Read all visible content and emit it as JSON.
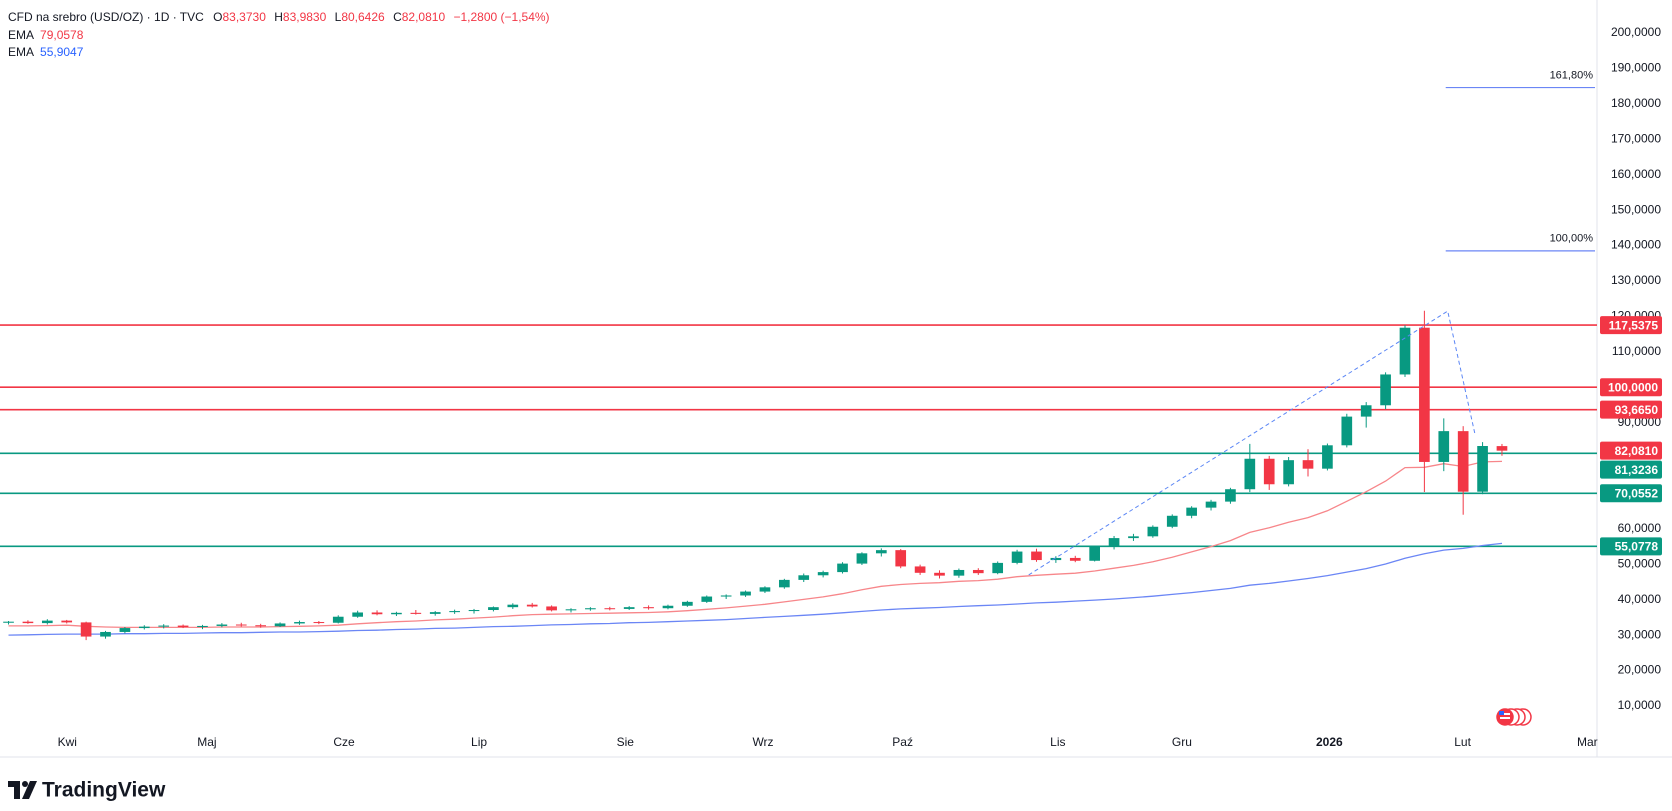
{
  "chart_data": {
    "type": "candlestick",
    "header": {
      "symbol": "CFD na srebro (USD/OZ) · 1D · TVC",
      "ohlc": [
        [
          "O",
          "83,3730"
        ],
        [
          "H",
          "83,9830"
        ],
        [
          "L",
          "80,6426"
        ],
        [
          "C",
          "82,0810"
        ]
      ],
      "change": "−1,2800 (−1,54%)"
    },
    "up_color": "#089981",
    "down_color": "#f23645",
    "xlim": [
      -0.44,
      81.9
    ],
    "ylim": [
      3.22,
      209.32
    ],
    "xticks": [
      {
        "value": 3.03,
        "label": "Kwi"
      },
      {
        "value": 10.23,
        "label": "Maj"
      },
      {
        "value": 17.3,
        "label": "Cze"
      },
      {
        "value": 24.26,
        "label": "Lip"
      },
      {
        "value": 31.8,
        "label": "Sie"
      },
      {
        "value": 38.9,
        "label": "Wrz"
      },
      {
        "value": 46.1,
        "label": "Paź"
      },
      {
        "value": 54.1,
        "label": "Lis"
      },
      {
        "value": 60.5,
        "label": "Gru"
      },
      {
        "value": 68.1,
        "label": "2026"
      },
      {
        "value": 74.97,
        "label": "Lut"
      },
      {
        "value": 81.4,
        "label": "Mar"
      }
    ],
    "yticks": [
      {
        "value": 10,
        "label": "10,0000"
      },
      {
        "value": 20,
        "label": "20,0000"
      },
      {
        "value": 30,
        "label": "30,0000"
      },
      {
        "value": 40,
        "label": "40,0000"
      },
      {
        "value": 50,
        "label": "50,0000"
      },
      {
        "value": 60,
        "label": "60,0000"
      },
      {
        "value": 90,
        "label": "90,0000"
      },
      {
        "value": 110,
        "label": "110,0000"
      },
      {
        "value": 120,
        "label": "120,0000"
      },
      {
        "value": 130,
        "label": "130,0000"
      },
      {
        "value": 140,
        "label": "140,0000"
      },
      {
        "value": 150,
        "label": "150,0000"
      },
      {
        "value": 160,
        "label": "160,0000"
      },
      {
        "value": 170,
        "label": "170,0000"
      },
      {
        "value": 180,
        "label": "180,0000"
      },
      {
        "value": 190,
        "label": "190,0000"
      },
      {
        "value": 200,
        "label": "200,0000"
      }
    ],
    "open": [
      33.5,
      33.8,
      33.4,
      34.1,
      33.6,
      29.6,
      30.9,
      32.0,
      32.4,
      32.7,
      32.3,
      32.6,
      33.0,
      32.8,
      32.5,
      33.3,
      33.7,
      33.5,
      35.2,
      36.4,
      35.9,
      36.3,
      36.0,
      36.5,
      36.8,
      37.1,
      37.9,
      38.6,
      38.1,
      37.0,
      37.3,
      37.6,
      37.4,
      37.9,
      37.6,
      38.3,
      39.4,
      40.9,
      41.2,
      42.3,
      43.5,
      45.6,
      46.9,
      47.8,
      50.2,
      53.1,
      54.0,
      49.4,
      47.6,
      46.8,
      48.4,
      47.5,
      50.4,
      53.6,
      51.2,
      51.8,
      51.0,
      54.9,
      57.4,
      57.9,
      60.6,
      63.7,
      66.0,
      67.7,
      71.2,
      79.8,
      72.6,
      79.4,
      77.0,
      83.6,
      91.7,
      94.9,
      103.6,
      116.8,
      78.9,
      87.6,
      70.5,
      83.373
    ],
    "high": [
      34.0,
      34.2,
      34.5,
      34.3,
      33.8,
      31.2,
      32.3,
      32.8,
      33.1,
      33.0,
      32.9,
      33.4,
      33.5,
      33.2,
      33.6,
      34.1,
      34.0,
      35.6,
      36.9,
      37.0,
      36.6,
      37.1,
      36.8,
      37.2,
      37.4,
      38.1,
      39.0,
      39.1,
      38.4,
      37.6,
      37.9,
      38.0,
      38.2,
      38.4,
      38.6,
      39.7,
      41.2,
      41.5,
      42.6,
      43.8,
      45.9,
      47.4,
      48.2,
      50.6,
      53.4,
      54.5,
      54.3,
      49.9,
      48.3,
      48.8,
      48.9,
      50.8,
      54.1,
      54.4,
      52.3,
      52.4,
      55.3,
      58.0,
      58.6,
      61.0,
      64.1,
      66.4,
      68.2,
      71.6,
      84.0,
      80.6,
      80.3,
      82.5,
      84.1,
      92.5,
      95.8,
      104.2,
      117.5,
      121.6,
      91.2,
      89.0,
      84.5,
      83.983
    ],
    "low": [
      33.0,
      33.2,
      33.0,
      33.3,
      28.6,
      29.0,
      30.5,
      31.6,
      31.9,
      32.0,
      31.7,
      32.2,
      32.4,
      32.1,
      32.3,
      32.9,
      33.1,
      33.3,
      34.9,
      35.6,
      35.4,
      35.8,
      35.5,
      36.0,
      36.1,
      36.7,
      37.4,
      37.8,
      36.7,
      36.4,
      36.9,
      37.0,
      37.1,
      37.2,
      37.3,
      38.0,
      39.1,
      40.2,
      40.8,
      41.9,
      43.1,
      45.0,
      46.3,
      47.4,
      49.8,
      52.2,
      48.9,
      47.0,
      46.0,
      46.2,
      47.0,
      47.2,
      50.0,
      50.7,
      50.4,
      50.6,
      50.8,
      54.2,
      56.6,
      57.5,
      60.2,
      63.0,
      65.2,
      67.1,
      70.4,
      71.0,
      72.0,
      74.8,
      76.5,
      83.0,
      88.6,
      93.8,
      102.9,
      70.4,
      76.3,
      64.0,
      69.8,
      80.6426
    ],
    "close": [
      33.8,
      33.4,
      34.1,
      33.6,
      29.6,
      30.9,
      32.0,
      32.4,
      32.7,
      32.3,
      32.6,
      33.0,
      32.8,
      32.5,
      33.3,
      33.7,
      33.5,
      35.2,
      36.4,
      35.9,
      36.3,
      36.0,
      36.5,
      36.8,
      37.1,
      37.9,
      38.6,
      38.1,
      37.0,
      37.3,
      37.6,
      37.4,
      37.9,
      37.6,
      38.3,
      39.4,
      40.9,
      41.2,
      42.3,
      43.5,
      45.6,
      46.9,
      47.8,
      50.2,
      53.1,
      54.0,
      49.4,
      47.6,
      46.8,
      48.4,
      47.5,
      50.4,
      53.6,
      51.2,
      51.8,
      51.0,
      54.9,
      57.4,
      57.9,
      60.6,
      63.7,
      66.0,
      67.7,
      71.2,
      79.8,
      72.6,
      79.4,
      77.0,
      83.6,
      91.7,
      94.9,
      103.6,
      116.8,
      78.9,
      87.6,
      70.5,
      83.4,
      82.081
    ],
    "series": [
      {
        "name": "EMA",
        "value_label": "79,0578",
        "color": "#f23645",
        "line_color": "#f7868a",
        "values": [
          32.6,
          32.6,
          32.7,
          32.8,
          32.5,
          32.3,
          32.2,
          32.2,
          32.2,
          32.2,
          32.2,
          32.3,
          32.3,
          32.3,
          32.4,
          32.5,
          32.6,
          32.8,
          33.2,
          33.5,
          33.8,
          34.0,
          34.3,
          34.5,
          34.8,
          35.1,
          35.5,
          35.8,
          35.9,
          36.0,
          36.1,
          36.2,
          36.3,
          36.4,
          36.6,
          36.9,
          37.3,
          37.7,
          38.2,
          38.7,
          39.4,
          40.1,
          40.8,
          41.7,
          42.8,
          43.8,
          44.3,
          44.6,
          44.8,
          45.2,
          45.4,
          45.8,
          46.5,
          46.9,
          47.2,
          47.5,
          48.1,
          48.9,
          49.7,
          50.7,
          52.0,
          53.5,
          55.0,
          56.7,
          59.0,
          60.3,
          61.9,
          63.2,
          65.1,
          67.8,
          70.5,
          73.5,
          77.3,
          77.4,
          78.4,
          77.6,
          78.9,
          79.0578
        ]
      },
      {
        "name": "EMA",
        "value_label": "55,9047",
        "color": "#2962ff",
        "line_color": "#6b86f5",
        "values": [
          30.0,
          30.1,
          30.2,
          30.3,
          30.3,
          30.3,
          30.4,
          30.4,
          30.5,
          30.5,
          30.6,
          30.7,
          30.7,
          30.8,
          30.9,
          30.9,
          31.0,
          31.1,
          31.3,
          31.4,
          31.6,
          31.7,
          31.9,
          32.0,
          32.2,
          32.4,
          32.5,
          32.7,
          32.9,
          33.0,
          33.2,
          33.3,
          33.5,
          33.6,
          33.8,
          34.0,
          34.2,
          34.4,
          34.7,
          35.0,
          35.3,
          35.6,
          35.9,
          36.3,
          36.7,
          37.1,
          37.4,
          37.6,
          37.8,
          38.1,
          38.3,
          38.5,
          38.8,
          39.1,
          39.3,
          39.6,
          39.9,
          40.2,
          40.6,
          41.0,
          41.5,
          42.0,
          42.6,
          43.2,
          44.1,
          44.6,
          45.3,
          46.0,
          46.8,
          47.8,
          48.8,
          50.1,
          51.7,
          53.0,
          54.0,
          54.5,
          55.3,
          55.9047
        ]
      }
    ],
    "levels": [
      {
        "value": 117.5375,
        "label": "117,5375",
        "color": "#f23645"
      },
      {
        "value": 100,
        "label": "100,0000",
        "color": "#f23645"
      },
      {
        "value": 93.665,
        "label": "93,6650",
        "color": "#f23645"
      },
      {
        "value": 81.3236,
        "label": "81,3236",
        "color": "#089981"
      },
      {
        "value": 70.0552,
        "label": "70,0552",
        "color": "#089981"
      },
      {
        "value": 55.0778,
        "label": "55,0778",
        "color": "#089981"
      }
    ],
    "last_price": {
      "value": 82.081,
      "label": "82,0810",
      "color": "#f23645"
    },
    "trend": [
      {
        "x": 52.6,
        "y": 47
      },
      {
        "x": 74.2,
        "y": 121.5
      },
      {
        "x": 75.6,
        "y": 87
      }
    ],
    "fib": {
      "x": 74.1,
      "color": "#2962ff",
      "levels": [
        {
          "value": 138.5,
          "label": "100,00%"
        },
        {
          "value": 184.6,
          "label": "161,80%"
        }
      ]
    },
    "brand": "TradingView"
  }
}
